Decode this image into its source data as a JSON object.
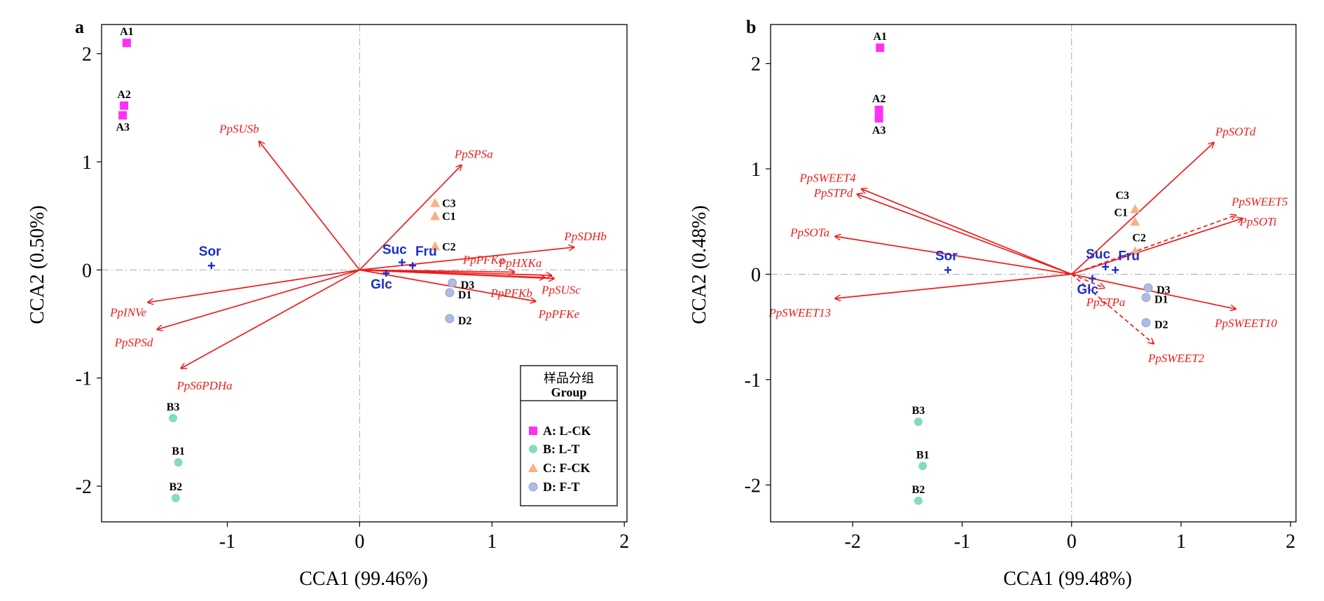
{
  "colors": {
    "arrow": "#ee1c1c",
    "sugar": "#1a2fc9",
    "A": "#ff2ff5",
    "B": "#83dcbc",
    "C": "#f7b184",
    "D": "#adbbe6"
  },
  "chart_data": [
    {
      "type": "scatter",
      "panel": "a",
      "xlabel": "CCA1 (99.46%)",
      "ylabel": "CCA2 (0.50%)",
      "xlim": [
        -1.95,
        2.02
      ],
      "ylim": [
        -2.33,
        2.27
      ],
      "xticks": [
        -1,
        0,
        1,
        2
      ],
      "yticks": [
        -2,
        -1,
        0,
        1,
        2
      ],
      "grid": false,
      "legend": {
        "placement": "bottom-right",
        "title_cn": "样品分组",
        "title": "Group",
        "entries": [
          {
            "group": "A",
            "label": "A: L-CK",
            "marker": "square"
          },
          {
            "group": "B",
            "label": "B: L-T",
            "marker": "circle"
          },
          {
            "group": "C",
            "label": "C: F-CK",
            "marker": "triangle"
          },
          {
            "group": "D",
            "label": "D: F-T",
            "marker": "circle"
          }
        ]
      },
      "samples": [
        {
          "label": "A1",
          "group": "A",
          "x": -1.76,
          "y": 2.1
        },
        {
          "label": "A2",
          "group": "A",
          "x": -1.78,
          "y": 1.52
        },
        {
          "label": "A3",
          "group": "A",
          "x": -1.79,
          "y": 1.43
        },
        {
          "label": "B1",
          "group": "B",
          "x": -1.37,
          "y": -1.78
        },
        {
          "label": "B2",
          "group": "B",
          "x": -1.39,
          "y": -2.11
        },
        {
          "label": "B3",
          "group": "B",
          "x": -1.41,
          "y": -1.37
        },
        {
          "label": "C1",
          "group": "C",
          "x": 0.57,
          "y": 0.5
        },
        {
          "label": "C2",
          "group": "C",
          "x": 0.57,
          "y": 0.22
        },
        {
          "label": "C3",
          "group": "C",
          "x": 0.57,
          "y": 0.62
        },
        {
          "label": "D1",
          "group": "D",
          "x": 0.68,
          "y": -0.21
        },
        {
          "label": "D2",
          "group": "D",
          "x": 0.68,
          "y": -0.45
        },
        {
          "label": "D3",
          "group": "D",
          "x": 0.7,
          "y": -0.12
        }
      ],
      "genes": [
        {
          "label": "PpSUSb",
          "x": -0.76,
          "y": 1.19
        },
        {
          "label": "PpSPSa",
          "x": 0.77,
          "y": 0.97
        },
        {
          "label": "PpSDHb",
          "x": 1.62,
          "y": 0.21
        },
        {
          "label": "PpPFKa",
          "x": 1.17,
          "y": -0.02
        },
        {
          "label": "PpHXKa",
          "x": 1.45,
          "y": -0.05
        },
        {
          "label": "PpPFKb",
          "x": 1.4,
          "y": -0.07
        },
        {
          "label": "PpSUSc",
          "x": 1.47,
          "y": -0.08
        },
        {
          "label": "PpPFKe",
          "x": 1.33,
          "y": -0.29
        },
        {
          "label": "PpINVe",
          "x": -1.6,
          "y": -0.3
        },
        {
          "label": "PpSPSd",
          "x": -1.53,
          "y": -0.55
        },
        {
          "label": "PpS6PDHa",
          "x": -1.35,
          "y": -0.91
        }
      ],
      "sugars": [
        {
          "label": "Sor",
          "x": -1.12,
          "y": 0.04
        },
        {
          "label": "Suc",
          "x": 0.32,
          "y": 0.07
        },
        {
          "label": "Fru",
          "x": 0.4,
          "y": 0.04
        },
        {
          "label": "Glc",
          "x": 0.2,
          "y": -0.03
        }
      ]
    },
    {
      "type": "scatter",
      "panel": "b",
      "xlabel": "CCA1 (99.48%)",
      "ylabel": "CCA2 (0.48%)",
      "xlim": [
        -2.75,
        2.05
      ],
      "ylim": [
        -2.35,
        2.37
      ],
      "xticks": [
        -2,
        -1,
        0,
        1,
        2
      ],
      "yticks": [
        -2,
        -1,
        0,
        1,
        2
      ],
      "grid": false,
      "samples": [
        {
          "label": "A1",
          "group": "A",
          "x": -1.75,
          "y": 2.15
        },
        {
          "label": "A2",
          "group": "A",
          "x": -1.76,
          "y": 1.56
        },
        {
          "label": "A3",
          "group": "A",
          "x": -1.76,
          "y": 1.48
        },
        {
          "label": "B1",
          "group": "B",
          "x": -1.36,
          "y": -1.82
        },
        {
          "label": "B2",
          "group": "B",
          "x": -1.4,
          "y": -2.15
        },
        {
          "label": "B3",
          "group": "B",
          "x": -1.4,
          "y": -1.4
        },
        {
          "label": "C1",
          "group": "C",
          "x": 0.58,
          "y": 0.5
        },
        {
          "label": "C2",
          "group": "C",
          "x": 0.58,
          "y": 0.22
        },
        {
          "label": "C3",
          "group": "C",
          "x": 0.58,
          "y": 0.62
        },
        {
          "label": "D1",
          "group": "D",
          "x": 0.68,
          "y": -0.22
        },
        {
          "label": "D2",
          "group": "D",
          "x": 0.68,
          "y": -0.46
        },
        {
          "label": "D3",
          "group": "D",
          "x": 0.7,
          "y": -0.13
        }
      ],
      "genes": [
        {
          "label": "PpSOTd",
          "x": 1.3,
          "y": 1.25,
          "dashed": false
        },
        {
          "label": "PpSWEET4",
          "x": -1.92,
          "y": 0.81,
          "dashed": false
        },
        {
          "label": "PpSTPd",
          "x": -1.96,
          "y": 0.76,
          "dashed": false
        },
        {
          "label": "PpSWEET5",
          "x": 1.5,
          "y": 0.56,
          "dashed": true
        },
        {
          "label": "PpSOTi",
          "x": 1.56,
          "y": 0.53,
          "dashed": false
        },
        {
          "label": "PpSOTa",
          "x": -2.16,
          "y": 0.36,
          "dashed": false
        },
        {
          "label": "PpSWEET13",
          "x": -2.16,
          "y": -0.23,
          "dashed": false
        },
        {
          "label": "PpSTPa",
          "x": 0.3,
          "y": -0.13,
          "dashed": true
        },
        {
          "label": "PpSWEET10",
          "x": 1.5,
          "y": -0.33,
          "dashed": false
        },
        {
          "label": "PpSWEET2",
          "x": 0.75,
          "y": -0.66,
          "dashed": true
        }
      ],
      "sugars": [
        {
          "label": "Sor",
          "x": -1.13,
          "y": 0.04
        },
        {
          "label": "Suc",
          "x": 0.31,
          "y": 0.07
        },
        {
          "label": "Fru",
          "x": 0.4,
          "y": 0.04
        },
        {
          "label": "Glc",
          "x": 0.19,
          "y": -0.04
        }
      ]
    }
  ]
}
